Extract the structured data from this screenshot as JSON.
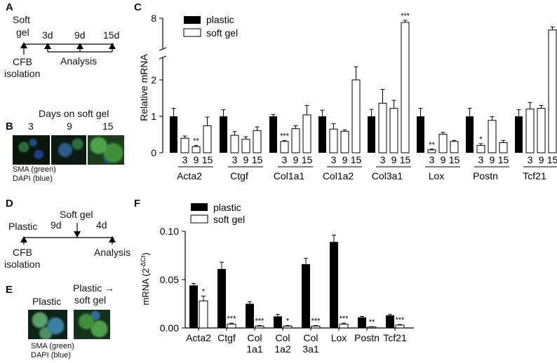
{
  "panels": [
    "A",
    "B",
    "C",
    "D",
    "E",
    "F"
  ],
  "panelA": {
    "soft": "Soft",
    "gel": "gel",
    "t3": "3d",
    "t9": "9d",
    "t15": "15d",
    "cfb": "CFB",
    "isolation": "isolation",
    "analysis": "Analysis"
  },
  "panelB": {
    "title": "Days on soft gel",
    "days": [
      "3",
      "9",
      "15"
    ],
    "stain1": "SMA (green)",
    "stain2": "DAPI (blue)"
  },
  "panelD": {
    "plastic": "Plastic",
    "t9": "9d",
    "softgel": "Soft gel",
    "t4": "4d",
    "cfb": "CFB",
    "isolation": "isolation",
    "analysis": "Analysis"
  },
  "panelE": {
    "plastic": "Plastic",
    "plastic2": "Plastic →",
    "softgel": "soft gel",
    "stain1": "SMA (green)",
    "stain2": "DAPI (blue)"
  },
  "chart_data": [
    {
      "type": "bar",
      "ylabel": "Relative mRNA",
      "y_axis": "broken",
      "yticks_lower": [
        0,
        1,
        2
      ],
      "yticks_upper": [
        8
      ],
      "legend": [
        "plastic",
        "soft gel"
      ],
      "legend_placement": "top-left",
      "genes": [
        "Acta2",
        "Ctgf",
        "Col1a1",
        "Col1a2",
        "Col3a1",
        "Lox",
        "Postn",
        "Tcf21"
      ],
      "day_labels": [
        "3",
        "9",
        "15"
      ],
      "groups": [
        {
          "gene": "Acta2",
          "plastic": {
            "v": 1.0,
            "e": 0.22
          },
          "soft": [
            {
              "v": 0.4,
              "e": 0.06,
              "sig": ""
            },
            {
              "v": 0.17,
              "e": 0.03,
              "sig": "**"
            },
            {
              "v": 0.74,
              "e": 0.24,
              "sig": ""
            }
          ]
        },
        {
          "gene": "Ctgf",
          "plastic": {
            "v": 1.0,
            "e": 0.18
          },
          "soft": [
            {
              "v": 0.48,
              "e": 0.1,
              "sig": ""
            },
            {
              "v": 0.37,
              "e": 0.07,
              "sig": ""
            },
            {
              "v": 0.61,
              "e": 0.1,
              "sig": ""
            }
          ]
        },
        {
          "gene": "Col1a1",
          "plastic": {
            "v": 1.0,
            "e": 0.05
          },
          "soft": [
            {
              "v": 0.31,
              "e": 0.03,
              "sig": "***"
            },
            {
              "v": 0.66,
              "e": 0.08,
              "sig": ""
            },
            {
              "v": 1.04,
              "e": 0.26,
              "sig": ""
            }
          ]
        },
        {
          "gene": "Col1a2",
          "plastic": {
            "v": 1.0,
            "e": 0.17
          },
          "soft": [
            {
              "v": 0.65,
              "e": 0.15,
              "sig": ""
            },
            {
              "v": 0.59,
              "e": 0.04,
              "sig": ""
            },
            {
              "v": 2.0,
              "e": 0.23,
              "sig": ""
            }
          ]
        },
        {
          "gene": "Col3a1",
          "plastic": {
            "v": 1.0,
            "e": 0.19
          },
          "soft": [
            {
              "v": 1.36,
              "e": 0.38,
              "sig": ""
            },
            {
              "v": 1.22,
              "e": 0.22,
              "sig": ""
            },
            {
              "v": 7.5,
              "e": 0.25,
              "sig": "***"
            }
          ]
        },
        {
          "gene": "Lox",
          "plastic": {
            "v": 1.0,
            "e": 0.22
          },
          "soft": [
            {
              "v": 0.08,
              "e": 0.02,
              "sig": "**"
            },
            {
              "v": 0.51,
              "e": 0.05,
              "sig": ""
            },
            {
              "v": 0.31,
              "e": 0.03,
              "sig": ""
            }
          ]
        },
        {
          "gene": "Postn",
          "plastic": {
            "v": 1.0,
            "e": 0.22
          },
          "soft": [
            {
              "v": 0.2,
              "e": 0.05,
              "sig": "*"
            },
            {
              "v": 0.89,
              "e": 0.1,
              "sig": ""
            },
            {
              "v": 0.28,
              "e": 0.06,
              "sig": ""
            }
          ]
        },
        {
          "gene": "Tcf21",
          "plastic": {
            "v": 1.0,
            "e": 0.18
          },
          "soft": [
            {
              "v": 1.2,
              "e": 0.18,
              "sig": ""
            },
            {
              "v": 1.22,
              "e": 0.08,
              "sig": ""
            },
            {
              "v": 6.6,
              "e": 0.35,
              "sig": ""
            }
          ]
        }
      ]
    },
    {
      "type": "bar",
      "ylabel": "mRNA",
      "ylabel_sup": "(2",
      "ylabel_exp": "-ΔCt",
      "ylabel_close": ")",
      "ylim": [
        0,
        0.1
      ],
      "yticks": [
        "0.00",
        "0.05",
        "0.10"
      ],
      "ytick_values": [
        0,
        0.05,
        0.1
      ],
      "legend": [
        "plastic",
        "soft gel"
      ],
      "legend_placement": "top-left",
      "categories": [
        {
          "label1": "Acta2",
          "label2": ""
        },
        {
          "label1": "Ctgf",
          "label2": ""
        },
        {
          "label1": "Col",
          "label2": "1a1"
        },
        {
          "label1": "Col",
          "label2": "1a2"
        },
        {
          "label1": "Col",
          "label2": "3a1"
        },
        {
          "label1": "Lox",
          "label2": ""
        },
        {
          "label1": "Postn",
          "label2": ""
        },
        {
          "label1": "Tcf21",
          "label2": ""
        }
      ],
      "series": [
        {
          "name": "plastic",
          "values": [
            0.044,
            0.061,
            0.025,
            0.012,
            0.066,
            0.089,
            0.011,
            0.013
          ],
          "errors": [
            0.002,
            0.007,
            0.002,
            0.002,
            0.006,
            0.007,
            0.001,
            0.001
          ]
        },
        {
          "name": "soft gel",
          "values": [
            0.028,
            0.004,
            0.002,
            0.002,
            0.002,
            0.004,
            0.001,
            0.003
          ],
          "errors": [
            0.005,
            0.001,
            0.0005,
            0.0005,
            0.0005,
            0.001,
            0.0003,
            0.0005
          ]
        }
      ],
      "significance": [
        "*",
        "***",
        "***",
        "*",
        "***",
        "***",
        "**",
        "***"
      ]
    }
  ]
}
